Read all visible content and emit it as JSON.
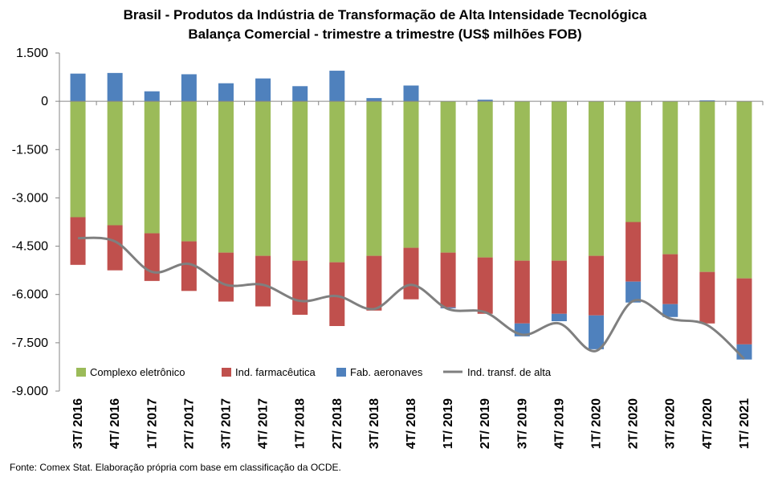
{
  "chart_data": {
    "type": "bar",
    "stacked": true,
    "title": "Brasil - Produtos da Indústria de Transformação de Alta Intensidade Tecnológica",
    "subtitle": "Balança Comercial - trimestre a trimestre (US$ milhões FOB)",
    "categories": [
      "3T/ 2016",
      "4T/ 2016",
      "1T/ 2017",
      "2T/ 2017",
      "3T/ 2017",
      "4T/ 2017",
      "1T/ 2018",
      "2T/ 2018",
      "3T/ 2018",
      "4T/ 2018",
      "1T/ 2019",
      "2T/ 2019",
      "3T/ 2019",
      "4T/ 2019",
      "1T/ 2020",
      "2T/ 2020",
      "3T/ 2020",
      "4T/ 2020",
      "1T/ 2021"
    ],
    "series": [
      {
        "name": "Complexo eletrônico",
        "kind": "bar",
        "color": "#9BBB59",
        "values": [
          -3600,
          -3850,
          -4100,
          -4350,
          -4700,
          -4800,
          -4950,
          -5000,
          -4800,
          -4550,
          -4700,
          -4850,
          -4950,
          -4950,
          -4800,
          -3750,
          -4750,
          -5300,
          -5500
        ]
      },
      {
        "name": "Ind. farmacêutica",
        "kind": "bar",
        "color": "#C0504D",
        "values": [
          -1480,
          -1400,
          -1480,
          -1540,
          -1520,
          -1570,
          -1680,
          -1980,
          -1700,
          -1600,
          -1700,
          -1750,
          -1950,
          -1650,
          -1850,
          -1850,
          -1550,
          -1600,
          -2050
        ]
      },
      {
        "name": "Fab. aeronaves",
        "kind": "bar",
        "color": "#4F81BD",
        "values": [
          860,
          880,
          310,
          840,
          560,
          710,
          470,
          950,
          100,
          490,
          -30,
          50,
          -400,
          -230,
          -1050,
          -650,
          -400,
          30,
          -470
        ]
      },
      {
        "name": "Ind. transf. de alta",
        "kind": "line",
        "color": "#7F7F7F",
        "values": [
          -4250,
          -4350,
          -5300,
          -5050,
          -5700,
          -5700,
          -6200,
          -6050,
          -6450,
          -5700,
          -6450,
          -6550,
          -7250,
          -6900,
          -7750,
          -6200,
          -6750,
          -6950,
          -8000
        ]
      }
    ],
    "ylim": [
      -9000,
      1500
    ],
    "yticks": [
      1500,
      0,
      -1500,
      -3000,
      -4500,
      -6000,
      -7500,
      -9000
    ],
    "ytick_labels": [
      "1.500",
      "0",
      "-1.500",
      "-3.000",
      "-4.500",
      "-6.000",
      "-7.500",
      "-9.000"
    ],
    "legend_position": "bottom-inside"
  },
  "source": "Fonte:  Comex Stat. Elaboração própria com base em classificação da OCDE."
}
